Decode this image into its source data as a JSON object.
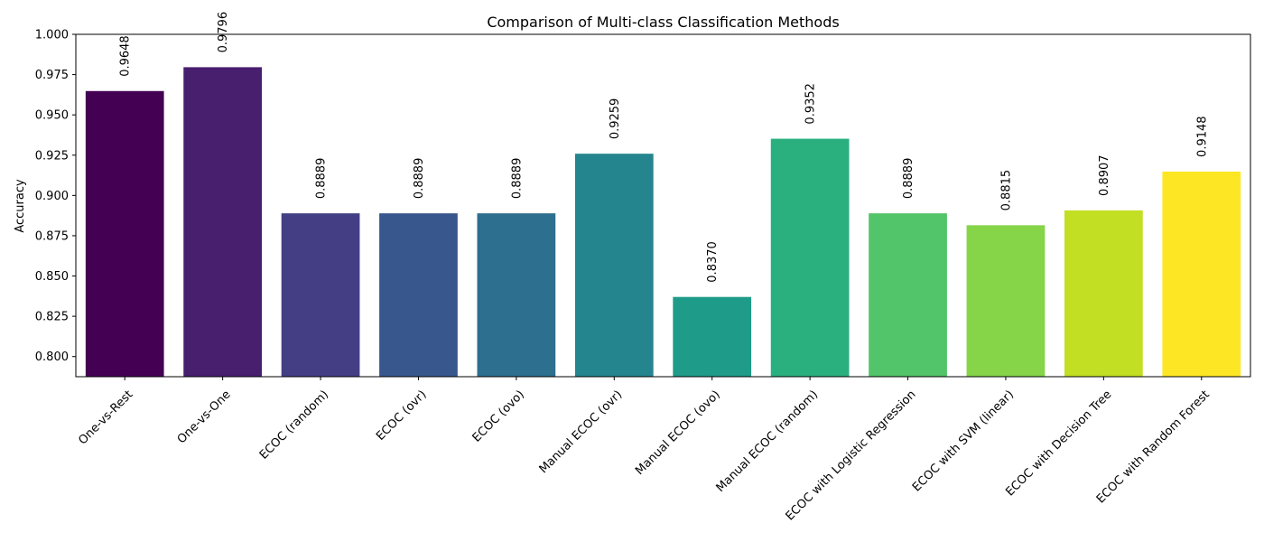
{
  "chart_data": {
    "type": "bar",
    "title": "Comparison of Multi-class Classification Methods",
    "xlabel": "",
    "ylabel": "Accuracy",
    "ylim": [
      0.7875,
      1.0
    ],
    "yticks": [
      "0.800",
      "0.825",
      "0.850",
      "0.875",
      "0.900",
      "0.925",
      "0.950",
      "0.975",
      "1.000"
    ],
    "categories": [
      "One-vs-Rest",
      "One-vs-One",
      "ECOC (random)",
      "ECOC (ovr)",
      "ECOC (ovo)",
      "Manual ECOC (ovr)",
      "Manual ECOC (ovo)",
      "Manual ECOC (random)",
      "ECOC with Logistic Regression",
      "ECOC with SVM (linear)",
      "ECOC with Decision Tree",
      "ECOC with Random Forest"
    ],
    "values": [
      0.9648,
      0.9796,
      0.8889,
      0.8889,
      0.8889,
      0.9259,
      0.837,
      0.9352,
      0.8889,
      0.8815,
      0.8907,
      0.9148
    ],
    "data_labels": [
      "0.9648",
      "0.9796",
      "0.8889",
      "0.8889",
      "0.8889",
      "0.9259",
      "0.8370",
      "0.9352",
      "0.8889",
      "0.8815",
      "0.8907",
      "0.9148"
    ],
    "colors": [
      "#440154",
      "#481e6f",
      "#443f84",
      "#38578c",
      "#2d6f8e",
      "#24858e",
      "#1e9b89",
      "#2ab07f",
      "#52c469",
      "#86d448",
      "#c2df23",
      "#fde724"
    ],
    "grid": false,
    "legend": "none"
  }
}
